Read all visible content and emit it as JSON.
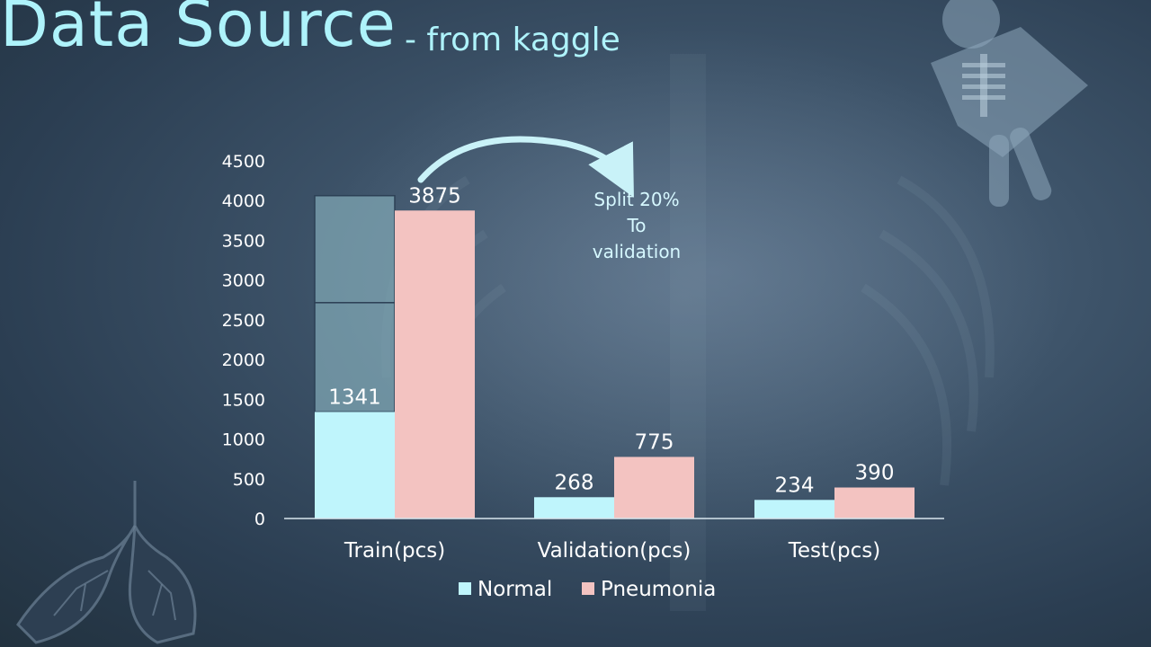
{
  "slide": {
    "title": "Data Source",
    "subtitle": "- from kaggle"
  },
  "annotation": {
    "lines": [
      "Split 20%",
      "To",
      "validation"
    ]
  },
  "colors": {
    "normal": "#bff5fc",
    "pneumonia": "#f3c3c1",
    "split_overlay": "#7fa6b3",
    "axis_text": "#ffffff",
    "title": "#aef3fb"
  },
  "icons": [
    "skeleton-xray-icon",
    "lungs-icon",
    "curved-arrow-icon"
  ],
  "chart_data": {
    "type": "bar",
    "categories": [
      "Train(pcs)",
      "Validation(pcs)",
      "Test(pcs)"
    ],
    "series": [
      {
        "name": "Normal",
        "values": [
          1341,
          268,
          234
        ]
      },
      {
        "name": "Pneumonia",
        "values": [
          3875,
          775,
          390
        ]
      }
    ],
    "ylim": [
      0,
      4500
    ],
    "yticks": [
      0,
      500,
      1000,
      1500,
      2000,
      2500,
      3000,
      3500,
      4000,
      4500
    ],
    "grid": false,
    "legend": "bottom",
    "split_overlay": {
      "category": "Train(pcs)",
      "levels": [
        1341,
        2716,
        4062
      ]
    }
  }
}
